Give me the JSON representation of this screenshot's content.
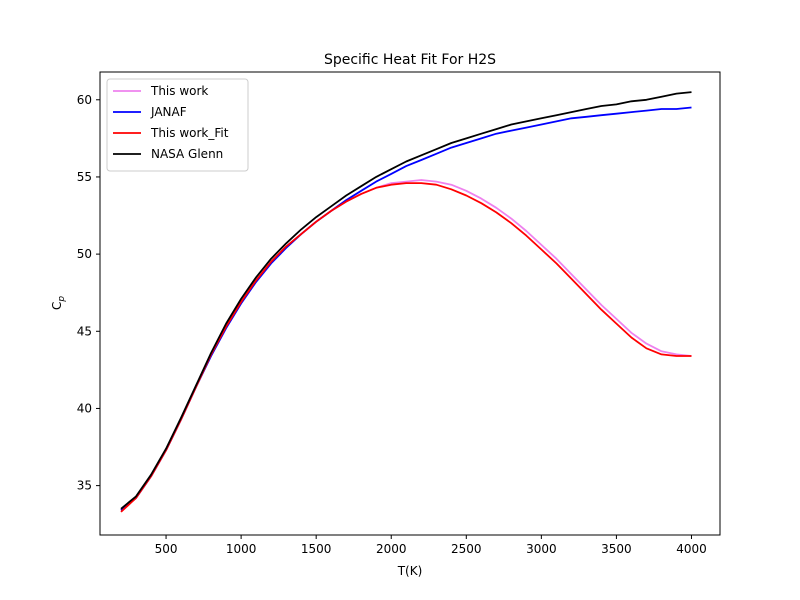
{
  "chart_data": {
    "type": "line",
    "title": "Specific Heat Fit For H2S",
    "xlabel": "T(K)",
    "ylabel_main": "C",
    "ylabel_sub": "p",
    "xlim": [
      60,
      4190
    ],
    "ylim": [
      31.8,
      61.8
    ],
    "xticks": [
      500,
      1000,
      1500,
      2000,
      2500,
      3000,
      3500,
      4000
    ],
    "yticks": [
      35,
      40,
      45,
      50,
      55,
      60
    ],
    "grid": false,
    "legend_position": "upper-left",
    "x": [
      200,
      300,
      400,
      500,
      600,
      700,
      800,
      900,
      1000,
      1100,
      1200,
      1300,
      1400,
      1500,
      1600,
      1700,
      1800,
      1900,
      2000,
      2100,
      2200,
      2300,
      2400,
      2500,
      2600,
      2700,
      2800,
      2900,
      3000,
      3100,
      3200,
      3300,
      3400,
      3500,
      3600,
      3700,
      3800,
      3900,
      4000
    ],
    "series": [
      {
        "name": "This work",
        "color": "#ee82ee",
        "values": [
          33.4,
          34.2,
          35.6,
          37.3,
          39.3,
          41.4,
          43.5,
          45.3,
          46.9,
          48.3,
          49.5,
          50.5,
          51.3,
          52.1,
          52.8,
          53.4,
          53.9,
          54.3,
          54.6,
          54.7,
          54.8,
          54.7,
          54.5,
          54.1,
          53.6,
          53.0,
          52.3,
          51.5,
          50.6,
          49.7,
          48.7,
          47.7,
          46.7,
          45.8,
          44.9,
          44.2,
          43.7,
          43.5,
          43.4
        ]
      },
      {
        "name": "JANAF",
        "color": "#0000ff",
        "values": [
          33.4,
          34.2,
          35.6,
          37.3,
          39.3,
          41.4,
          43.4,
          45.2,
          46.8,
          48.2,
          49.4,
          50.4,
          51.3,
          52.1,
          52.8,
          53.5,
          54.1,
          54.7,
          55.2,
          55.7,
          56.1,
          56.5,
          56.9,
          57.2,
          57.5,
          57.8,
          58.0,
          58.2,
          58.4,
          58.6,
          58.8,
          58.9,
          59.0,
          59.1,
          59.2,
          59.3,
          59.4,
          59.4,
          59.5
        ]
      },
      {
        "name": "This work_Fit",
        "color": "#ff0000",
        "values": [
          33.3,
          34.2,
          35.6,
          37.3,
          39.3,
          41.4,
          43.5,
          45.3,
          46.9,
          48.3,
          49.5,
          50.5,
          51.3,
          52.1,
          52.8,
          53.4,
          53.9,
          54.3,
          54.5,
          54.6,
          54.6,
          54.5,
          54.2,
          53.8,
          53.3,
          52.7,
          52.0,
          51.2,
          50.3,
          49.4,
          48.4,
          47.4,
          46.4,
          45.5,
          44.6,
          43.9,
          43.5,
          43.4,
          43.4
        ]
      },
      {
        "name": "NASA Glenn",
        "color": "#000000",
        "values": [
          33.5,
          34.3,
          35.7,
          37.4,
          39.4,
          41.5,
          43.6,
          45.5,
          47.1,
          48.5,
          49.7,
          50.7,
          51.6,
          52.4,
          53.1,
          53.8,
          54.4,
          55.0,
          55.5,
          56.0,
          56.4,
          56.8,
          57.2,
          57.5,
          57.8,
          58.1,
          58.4,
          58.6,
          58.8,
          59.0,
          59.2,
          59.4,
          59.6,
          59.7,
          59.9,
          60.0,
          60.2,
          60.4,
          60.5
        ]
      }
    ]
  }
}
